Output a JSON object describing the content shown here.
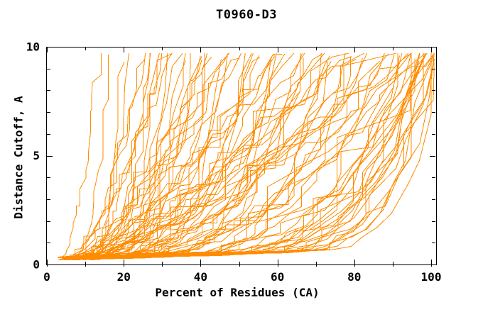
{
  "window": {
    "background": "#ffffff"
  },
  "chart_data": {
    "type": "line",
    "title": "T0960-D3",
    "xlabel": "Percent of Residues (CA)",
    "ylabel": "Distance Cutoff, A",
    "xlim": [
      0,
      100
    ],
    "ylim": [
      0,
      10
    ],
    "x_major_ticks": [
      0,
      20,
      40,
      60,
      80,
      100
    ],
    "x_minor_step": 10,
    "y_major_ticks": [
      0,
      5,
      10
    ],
    "y_minor_step": 1,
    "grid": false,
    "legend": "none",
    "frame_color": "#000000",
    "line_color": "#ff8c00",
    "cutoff_start": 0.2,
    "cutoff_max": 9.7,
    "series_format": "[start_percent, percent_at_top_cutoff, rise_exponent] per model curve",
    "series": [
      [
        5,
        16,
        1.4
      ],
      [
        7,
        18,
        2.2
      ],
      [
        9,
        20,
        3.2
      ],
      [
        4,
        22,
        4.5
      ],
      [
        6,
        24,
        1.8
      ],
      [
        8,
        26,
        2.8
      ],
      [
        10,
        28,
        5.5
      ],
      [
        12,
        30,
        1.2
      ],
      [
        5,
        32,
        1.4
      ],
      [
        7,
        34,
        2.2
      ],
      [
        9,
        36,
        3.2
      ],
      [
        4,
        38,
        4.5
      ],
      [
        6,
        40,
        1.8
      ],
      [
        8,
        42,
        2.8
      ],
      [
        10,
        44,
        5.5
      ],
      [
        12,
        46,
        1.2
      ],
      [
        5,
        48,
        1.4
      ],
      [
        7,
        50,
        2.2
      ],
      [
        9,
        52,
        3.2
      ],
      [
        4,
        54,
        4.5
      ],
      [
        6,
        56,
        1.8
      ],
      [
        8,
        58,
        2.8
      ],
      [
        10,
        60,
        5.5
      ],
      [
        12,
        62,
        1.2
      ],
      [
        5,
        64,
        1.4
      ],
      [
        7,
        66,
        2.2
      ],
      [
        9,
        68,
        3.2
      ],
      [
        4,
        70,
        4.5
      ],
      [
        6,
        72,
        1.8
      ],
      [
        8,
        74,
        2.8
      ],
      [
        10,
        76,
        5.5
      ],
      [
        12,
        78,
        1.2
      ],
      [
        5,
        80,
        1.4
      ],
      [
        7,
        82,
        2.2
      ],
      [
        9,
        84,
        3.2
      ],
      [
        4,
        86,
        4.5
      ],
      [
        6,
        88,
        1.8
      ],
      [
        8,
        90,
        2.8
      ],
      [
        10,
        92,
        5.5
      ],
      [
        12,
        94,
        1.2
      ],
      [
        5,
        96,
        1.4
      ],
      [
        7,
        98,
        2.2
      ],
      [
        9,
        100,
        3.2
      ],
      [
        6,
        25,
        2
      ],
      [
        8,
        27.5,
        3.8
      ],
      [
        5,
        30,
        1.5
      ],
      [
        11,
        32.5,
        4.8
      ],
      [
        7,
        35,
        2.5
      ],
      [
        4,
        37.5,
        6
      ],
      [
        9,
        40,
        1.3
      ],
      [
        13,
        42.5,
        3
      ],
      [
        6,
        45,
        2
      ],
      [
        8,
        47.5,
        3.8
      ],
      [
        5,
        50,
        1.5
      ],
      [
        11,
        52.5,
        4.8
      ],
      [
        7,
        55,
        2.5
      ],
      [
        4,
        57.5,
        6
      ],
      [
        9,
        60,
        1.3
      ],
      [
        13,
        62.5,
        3
      ],
      [
        6,
        65,
        2
      ],
      [
        8,
        67.5,
        3.8
      ],
      [
        5,
        70,
        1.5
      ],
      [
        11,
        72.5,
        4.8
      ],
      [
        7,
        75,
        2.5
      ],
      [
        4,
        77.5,
        6
      ],
      [
        9,
        80,
        1.3
      ],
      [
        13,
        82.5,
        3
      ],
      [
        6,
        85,
        2
      ],
      [
        8,
        87.5,
        3.8
      ],
      [
        5,
        90,
        1.5
      ],
      [
        11,
        92.5,
        4.8
      ],
      [
        7,
        95,
        2.5
      ],
      [
        4,
        97.5,
        6
      ],
      [
        9,
        100,
        1.3
      ],
      [
        6,
        95,
        5
      ],
      [
        9,
        95.5,
        6.5
      ],
      [
        12,
        96,
        8
      ],
      [
        8,
        96.5,
        4
      ],
      [
        5,
        97,
        7
      ],
      [
        6,
        97.5,
        5
      ],
      [
        9,
        98,
        6.5
      ],
      [
        12,
        98.5,
        8
      ],
      [
        8,
        99,
        4
      ],
      [
        5,
        99.5,
        7
      ],
      [
        6,
        100,
        5
      ],
      [
        9,
        100.5,
        6.5
      ],
      [
        12,
        101,
        8
      ],
      [
        8,
        101.5,
        4
      ],
      [
        5,
        102,
        7
      ],
      [
        6,
        102.5,
        5
      ],
      [
        9,
        103,
        6.5
      ],
      [
        12,
        103.5,
        8
      ],
      [
        8,
        104,
        4
      ]
    ]
  }
}
